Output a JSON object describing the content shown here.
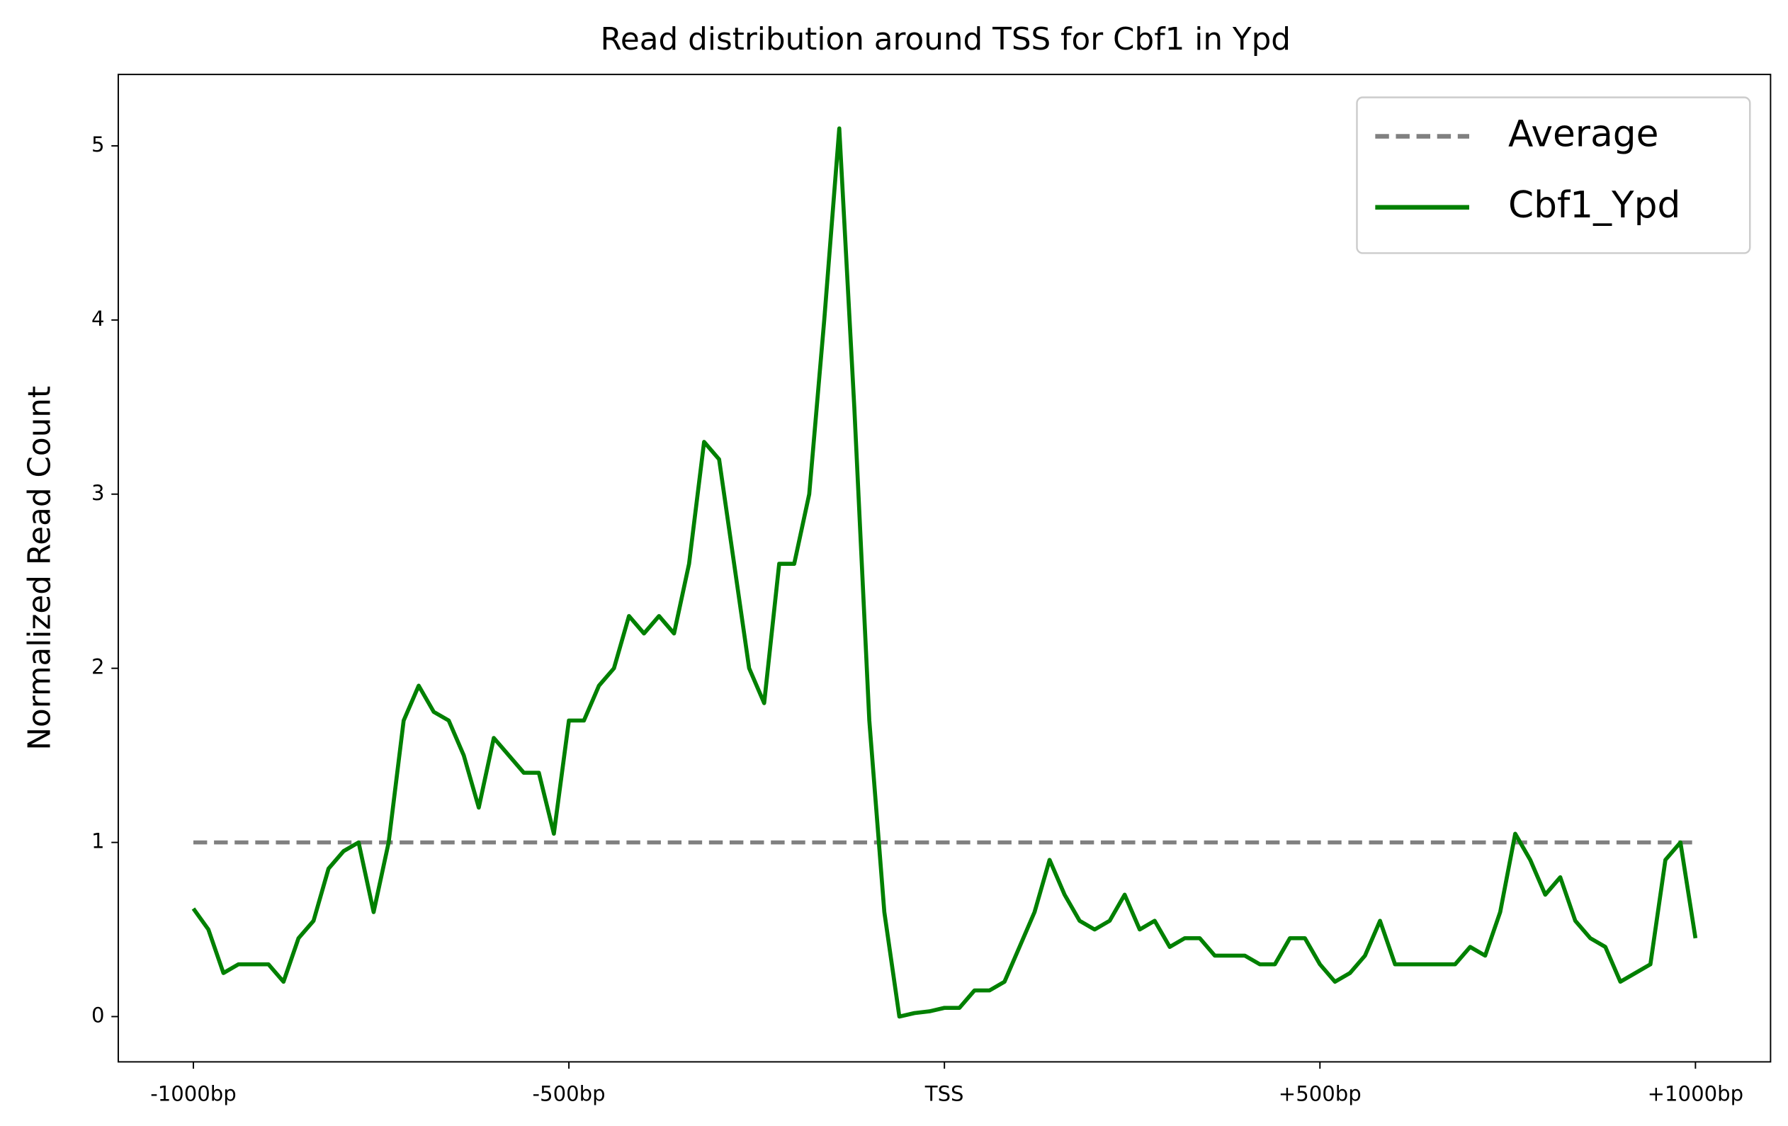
{
  "chart_data": {
    "type": "line",
    "title": "Read distribution around TSS for Cbf1 in Ypd",
    "y_label": "Normalized Read Count",
    "xlim": [
      -1100,
      1100
    ],
    "ylim": [
      -0.26,
      5.41
    ],
    "xticks": [
      {
        "value": -1000,
        "label": "-1000bp"
      },
      {
        "value": -500,
        "label": "-500bp"
      },
      {
        "value": 0,
        "label": "TSS"
      },
      {
        "value": 500,
        "label": "+500bp"
      },
      {
        "value": 1000,
        "label": "+1000bp"
      }
    ],
    "yticks": [
      0,
      1,
      2,
      3,
      4,
      5
    ],
    "legend": "upper right",
    "series": [
      {
        "name": "Average",
        "color": "#808080",
        "dashed": true,
        "x": [
          -1000,
          1000
        ],
        "values": [
          1,
          1
        ]
      },
      {
        "name": "Cbf1_Ypd",
        "color": "#008000",
        "dashed": false,
        "x": [
          -1000,
          -980,
          -960,
          -940,
          -920,
          -900,
          -880,
          -860,
          -840,
          -820,
          -800,
          -780,
          -760,
          -740,
          -720,
          -700,
          -680,
          -660,
          -640,
          -620,
          -600,
          -580,
          -560,
          -540,
          -520,
          -500,
          -480,
          -460,
          -440,
          -420,
          -400,
          -380,
          -360,
          -340,
          -320,
          -300,
          -280,
          -260,
          -240,
          -220,
          -200,
          -180,
          -160,
          -140,
          -120,
          -100,
          -80,
          -60,
          -40,
          -20,
          0,
          20,
          40,
          60,
          80,
          100,
          120,
          140,
          160,
          180,
          200,
          220,
          240,
          260,
          280,
          300,
          320,
          340,
          360,
          380,
          400,
          420,
          440,
          460,
          480,
          500,
          520,
          540,
          560,
          580,
          600,
          620,
          640,
          660,
          680,
          700,
          720,
          740,
          760,
          780,
          800,
          820,
          840,
          860,
          880,
          900,
          920,
          940,
          960,
          980,
          1000
        ],
        "values": [
          0.62,
          0.5,
          0.25,
          0.3,
          0.3,
          0.3,
          0.2,
          0.45,
          0.55,
          0.85,
          0.95,
          1.0,
          0.6,
          1.0,
          1.7,
          1.9,
          1.75,
          1.7,
          1.5,
          1.2,
          1.6,
          1.5,
          1.4,
          1.4,
          1.05,
          1.7,
          1.7,
          1.9,
          2.0,
          2.3,
          2.2,
          2.3,
          2.2,
          2.6,
          3.3,
          3.2,
          2.6,
          2.0,
          1.8,
          2.6,
          2.6,
          3.0,
          4.0,
          5.1,
          3.5,
          1.7,
          0.6,
          0.0,
          0.02,
          0.03,
          0.05,
          0.05,
          0.15,
          0.15,
          0.2,
          0.4,
          0.6,
          0.9,
          0.7,
          0.55,
          0.5,
          0.55,
          0.7,
          0.5,
          0.55,
          0.4,
          0.45,
          0.45,
          0.35,
          0.35,
          0.35,
          0.3,
          0.3,
          0.45,
          0.45,
          0.3,
          0.2,
          0.25,
          0.35,
          0.55,
          0.3,
          0.3,
          0.3,
          0.3,
          0.3,
          0.4,
          0.35,
          0.6,
          1.05,
          0.9,
          0.7,
          0.8,
          0.55,
          0.45,
          0.4,
          0.2,
          0.25,
          0.3,
          0.9,
          1.0,
          0.45
        ]
      }
    ]
  }
}
